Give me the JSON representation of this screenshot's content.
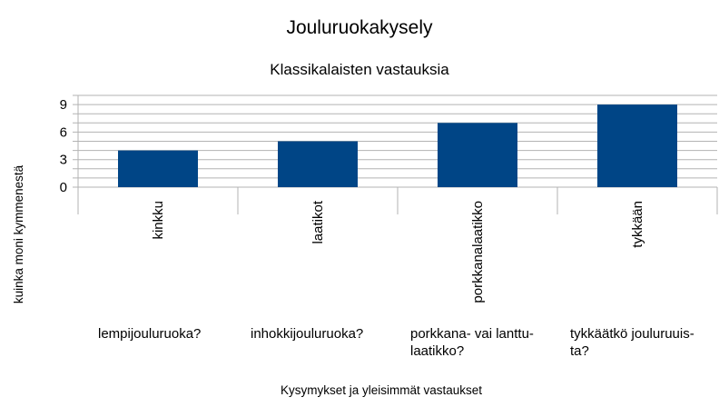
{
  "chart_data": {
    "type": "bar",
    "title": "Jouluruokakysely",
    "subtitle": "Klassikalaisten vastauksia",
    "xlabel": "Kysymykset ja yleisimmät vastaukset",
    "ylabel": "kuinka moni kymmenestä",
    "ylim": [
      0,
      10
    ],
    "yticks": [
      0,
      3,
      6,
      9
    ],
    "grid": true,
    "legend": "none",
    "bar_color": "#004586",
    "categories": [
      "kinkku",
      "laatikot",
      "porkkanalaatikko",
      "tykkään"
    ],
    "questions": [
      [
        "lempijouluruoka?"
      ],
      [
        "inhokkijouluruoka?"
      ],
      [
        "porkkana- vai lanttu-",
        "laatikko?"
      ],
      [
        "tykkäätkö jouluruuis-",
        "ta?"
      ]
    ],
    "values": [
      4,
      5,
      7,
      9
    ]
  }
}
